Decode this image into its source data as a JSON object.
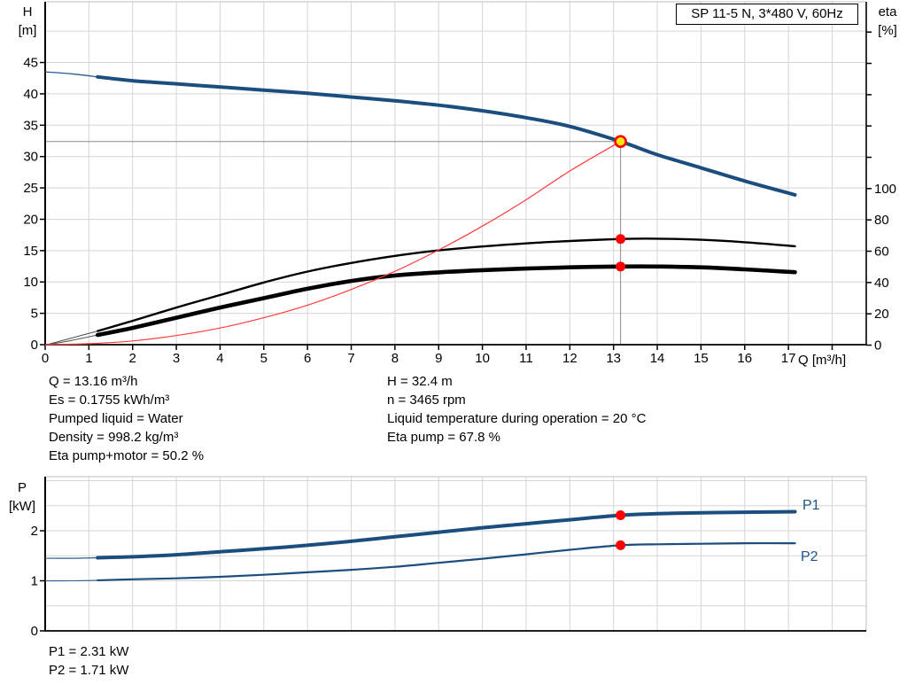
{
  "title_box": "SP 11-5 N, 3*480 V, 60Hz",
  "stats": {
    "left": [
      "Q = 13.16 m³/h",
      "Es = 0.1755 kWh/m³",
      "Pumped liquid = Water",
      "Density = 998.2 kg/m³",
      "Eta pump+motor = 50.2 %"
    ],
    "right": [
      "H = 32.4 m",
      "n = 3465 rpm",
      "Liquid temperature during operation = 20 °C",
      "Eta pump = 67.8 %"
    ],
    "power": [
      "P1 = 2.31 kW",
      "P2 = 1.71 kW"
    ]
  },
  "colors": {
    "curve_blue": "#1b4e7f",
    "label_blue": "#1d5391",
    "red": "#ff0000",
    "red_line": "#ff3b3b",
    "duty_yellow": "#ffe60a",
    "grid": "#d5d5d5",
    "frame_gray": "#bdbdbd",
    "crosshair": "#8c8c8c",
    "axis_black": "#000000",
    "thin_black": "#4d4d4d"
  },
  "chart_data": [
    {
      "type": "line",
      "name": "hq-eta-chart",
      "xlabel": "Q [m³/h]",
      "ylabel_left_lines": [
        "H",
        "[m]"
      ],
      "ylabel_right_lines": [
        "eta",
        "[%]"
      ],
      "xlim": [
        0,
        18.78
      ],
      "x_ticks": [
        0,
        1,
        2,
        3,
        4,
        5,
        6,
        7,
        8,
        9,
        10,
        11,
        12,
        13,
        14,
        15,
        16,
        17,
        18
      ],
      "x_tick_label_max": 17,
      "x_grid_max": 18,
      "ylim_left": [
        0,
        54.8
      ],
      "y_ticks_left": [
        0,
        5,
        10,
        15,
        20,
        25,
        30,
        35,
        40,
        45
      ],
      "y_grid_step_left": 5,
      "ylim_right": [
        0,
        220
      ],
      "y_right_tick_step": 20,
      "y_right_ticks_max": 200,
      "y_right_label_max": 100,
      "grid": true,
      "duty_point": {
        "q": 13.16,
        "h": 32.4
      },
      "markers": [
        {
          "q": 13.16,
          "v": 67.8,
          "axis": "right"
        },
        {
          "q": 13.16,
          "v": 50.2,
          "axis": "right"
        }
      ],
      "series": [
        {
          "name": "head-curve",
          "axis": "left",
          "color": "#1b4e7f",
          "width": 4,
          "thin_width": 1.3,
          "thin_color": "#2a5d8f",
          "thin_until": 1.2,
          "points": [
            [
              0,
              43.5
            ],
            [
              0.6,
              43.2
            ],
            [
              1.2,
              42.7
            ],
            [
              2,
              42.1
            ],
            [
              3,
              41.6
            ],
            [
              4,
              41.1
            ],
            [
              5,
              40.6
            ],
            [
              6,
              40.1
            ],
            [
              7,
              39.5
            ],
            [
              8,
              38.9
            ],
            [
              9,
              38.2
            ],
            [
              10,
              37.3
            ],
            [
              11,
              36.2
            ],
            [
              12,
              34.8
            ],
            [
              13.16,
              32.4
            ],
            [
              14,
              30.3
            ],
            [
              15,
              28.2
            ],
            [
              16,
              26.1
            ],
            [
              17.15,
              23.9
            ]
          ]
        },
        {
          "name": "eta-pump-curve",
          "axis": "right",
          "color": "#000000",
          "width": 2.4,
          "thin_width": 1,
          "thin_color": "#4d4d4d",
          "thin_until": 1.2,
          "points": [
            [
              0,
              0
            ],
            [
              0.6,
              4.5
            ],
            [
              1.2,
              9
            ],
            [
              2,
              15.5
            ],
            [
              3,
              24
            ],
            [
              4,
              32
            ],
            [
              5,
              40
            ],
            [
              6,
              47
            ],
            [
              7,
              52.5
            ],
            [
              8,
              57
            ],
            [
              9,
              60.5
            ],
            [
              10,
              63
            ],
            [
              11,
              65
            ],
            [
              12,
              66.5
            ],
            [
              13.16,
              67.8
            ],
            [
              14,
              68
            ],
            [
              15,
              67.3
            ],
            [
              16,
              65.7
            ],
            [
              17.15,
              63.2
            ]
          ]
        },
        {
          "name": "eta-pump-motor-curve",
          "axis": "right",
          "color": "#000000",
          "width": 4.6,
          "thin_width": 1,
          "thin_color": "#4d4d4d",
          "thin_until": 1.2,
          "points": [
            [
              0,
              0
            ],
            [
              0.6,
              3
            ],
            [
              1.2,
              6.5
            ],
            [
              2,
              11
            ],
            [
              3,
              17.5
            ],
            [
              4,
              24
            ],
            [
              5,
              30
            ],
            [
              6,
              36
            ],
            [
              7,
              41
            ],
            [
              8,
              44.5
            ],
            [
              9,
              46.5
            ],
            [
              10,
              47.9
            ],
            [
              11,
              48.9
            ],
            [
              12,
              49.7
            ],
            [
              13.16,
              50.2
            ],
            [
              14,
              50.2
            ],
            [
              15,
              49.7
            ],
            [
              16,
              48.4
            ],
            [
              17.15,
              46.6
            ]
          ]
        },
        {
          "name": "system-curve",
          "axis": "left",
          "color": "#ff3b3b",
          "width": 1.2,
          "points": [
            [
              0,
              0
            ],
            [
              1,
              0.15
            ],
            [
              2,
              0.6
            ],
            [
              3,
              1.45
            ],
            [
              4,
              2.65
            ],
            [
              5,
              4.3
            ],
            [
              6,
              6.3
            ],
            [
              7,
              8.8
            ],
            [
              8,
              11.7
            ],
            [
              9,
              15.1
            ],
            [
              10,
              18.9
            ],
            [
              11,
              23.1
            ],
            [
              12,
              27.7
            ],
            [
              13.16,
              32.4
            ]
          ]
        }
      ]
    },
    {
      "type": "line",
      "name": "power-chart",
      "xlabel": "",
      "ylabel_left_lines": [
        "P",
        "[kW]"
      ],
      "xlim": [
        0,
        18.78
      ],
      "x_ticks": [],
      "x_grid_max": 18,
      "ylim_left": [
        0,
        3.08
      ],
      "y_ticks_left": [
        0,
        1,
        2
      ],
      "y_grid_step_left": 0.5,
      "grid": true,
      "markers": [
        {
          "q": 13.16,
          "v": 2.31,
          "axis": "left"
        },
        {
          "q": 13.16,
          "v": 1.71,
          "axis": "left"
        }
      ],
      "series": [
        {
          "name": "P1",
          "label": "P1",
          "axis": "left",
          "color": "#1b4e7f",
          "width": 4,
          "thin_width": 1.2,
          "thin_color": "#2a5d8f",
          "thin_until": 1.2,
          "points": [
            [
              0,
              1.45
            ],
            [
              0.6,
              1.45
            ],
            [
              1.2,
              1.46
            ],
            [
              2,
              1.48
            ],
            [
              3,
              1.52
            ],
            [
              4,
              1.58
            ],
            [
              5,
              1.64
            ],
            [
              6,
              1.71
            ],
            [
              7,
              1.79
            ],
            [
              8,
              1.88
            ],
            [
              9,
              1.97
            ],
            [
              10,
              2.06
            ],
            [
              11,
              2.14
            ],
            [
              12,
              2.22
            ],
            [
              13.16,
              2.31
            ],
            [
              14,
              2.34
            ],
            [
              15,
              2.36
            ],
            [
              16,
              2.37
            ],
            [
              17.15,
              2.38
            ]
          ]
        },
        {
          "name": "P2",
          "label": "P2",
          "axis": "left",
          "color": "#1b4e7f",
          "width": 2.2,
          "thin_width": 1.1,
          "thin_color": "#2a5d8f",
          "thin_until": 1.2,
          "points": [
            [
              0,
              1.0
            ],
            [
              0.6,
              1.0
            ],
            [
              1.2,
              1.01
            ],
            [
              2,
              1.03
            ],
            [
              3,
              1.05
            ],
            [
              4,
              1.08
            ],
            [
              5,
              1.12
            ],
            [
              6,
              1.17
            ],
            [
              7,
              1.22
            ],
            [
              8,
              1.28
            ],
            [
              9,
              1.36
            ],
            [
              10,
              1.44
            ],
            [
              11,
              1.53
            ],
            [
              12,
              1.62
            ],
            [
              13.16,
              1.71
            ],
            [
              14,
              1.73
            ],
            [
              15,
              1.74
            ],
            [
              16,
              1.75
            ],
            [
              17.15,
              1.75
            ]
          ]
        }
      ]
    }
  ]
}
